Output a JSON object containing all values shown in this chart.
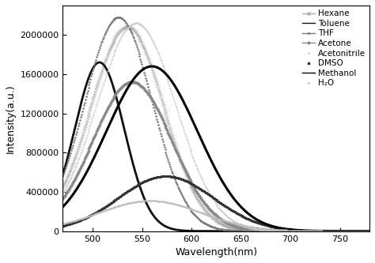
{
  "title": "",
  "xlabel": "Wavelength(nm)",
  "ylabel": "Intensity(a.u.)",
  "xlim": [
    470,
    780
  ],
  "ylim": [
    0,
    2300000
  ],
  "yticks": [
    0,
    400000,
    800000,
    1200000,
    1600000,
    2000000
  ],
  "xticks": [
    500,
    550,
    600,
    650,
    700,
    750
  ],
  "series": [
    {
      "name": "Hexane",
      "peak_wl": 535,
      "peak_int": 2080000,
      "sigma": 37,
      "color": "#aaaaaa",
      "marker": "x",
      "markersize": 2.5,
      "linewidth": 0.0,
      "linestyle": "none",
      "markevery": 2,
      "legend_ls": "-"
    },
    {
      "name": "Toluene",
      "peak_wl": 507,
      "peak_int": 1720000,
      "sigma": 25,
      "color": "#111111",
      "marker": "None",
      "markersize": 0,
      "linewidth": 2.0,
      "linestyle": "-",
      "markevery": 1,
      "legend_ls": "-"
    },
    {
      "name": "THF",
      "peak_wl": 526,
      "peak_int": 2180000,
      "sigma": 34,
      "color": "#777777",
      "marker": ".",
      "markersize": 2.5,
      "linewidth": 0.0,
      "linestyle": "none",
      "markevery": 2,
      "legend_ls": "-"
    },
    {
      "name": "Acetone",
      "peak_wl": 540,
      "peak_int": 1520000,
      "sigma": 40,
      "color": "#888888",
      "marker": "D",
      "markersize": 1.8,
      "linewidth": 0.0,
      "linestyle": "none",
      "markevery": 2,
      "legend_ls": "-"
    },
    {
      "name": "Acetonitrile",
      "peak_wl": 544,
      "peak_int": 2120000,
      "sigma": 40,
      "color": "#cccccc",
      "marker": ".",
      "markersize": 2.0,
      "linewidth": 0.0,
      "linestyle": "none",
      "markevery": 2,
      "legend_ls": "none"
    },
    {
      "name": "DMSO",
      "peak_wl": 574,
      "peak_int": 560000,
      "sigma": 48,
      "color": "#333333",
      "marker": ".",
      "markersize": 3.5,
      "linewidth": 0.0,
      "linestyle": "none",
      "markevery": 2,
      "legend_ls": "none"
    },
    {
      "name": "Methanol",
      "peak_wl": 560,
      "peak_int": 1680000,
      "sigma": 46,
      "color": "#000000",
      "marker": "None",
      "markersize": 0,
      "linewidth": 2.2,
      "linestyle": "-",
      "markevery": 1,
      "legend_ls": "-"
    },
    {
      "name": "H₂O",
      "peak_wl": 558,
      "peak_int": 310000,
      "sigma": 52,
      "color": "#bbbbbb",
      "marker": ".",
      "markersize": 2.0,
      "linewidth": 0.0,
      "linestyle": "none",
      "markevery": 2,
      "legend_ls": "none"
    }
  ],
  "background_color": "#ffffff",
  "legend_fontsize": 7.5,
  "axis_fontsize": 9,
  "tick_fontsize": 8
}
